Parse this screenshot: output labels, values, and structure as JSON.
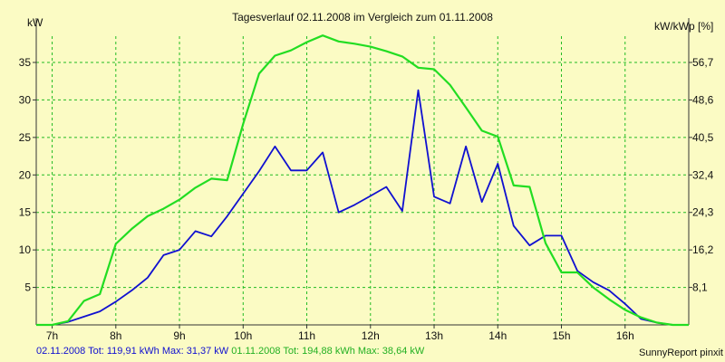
{
  "chart_data": {
    "type": "line",
    "title": "Tagesverlauf 02.11.2008 im Vergleich zum 01.11.2008",
    "ylabel_left": "kW",
    "ylabel_right": "kW/kWp [%]",
    "x_ticks": [
      "7h",
      "8h",
      "9h",
      "10h",
      "11h",
      "12h",
      "13h",
      "14h",
      "15h",
      "16h"
    ],
    "x_range_hours": [
      6.75,
      17.0
    ],
    "y_left_ticks": [
      5,
      10,
      15,
      20,
      25,
      30,
      35
    ],
    "y_left_range": [
      0,
      38.5
    ],
    "y_right_ticks": [
      "8,1",
      "16,2",
      "24,3",
      "32,4",
      "40,5",
      "48,6",
      "56,7"
    ],
    "grid": true,
    "colors": {
      "background": "#fbfbc4",
      "grid": "#22bb22",
      "series1": "#1010d0",
      "series2": "#22dd22"
    },
    "series": [
      {
        "name": "02.11.2008",
        "color": "#1010d0",
        "points": [
          [
            6.75,
            0
          ],
          [
            7.0,
            0
          ],
          [
            7.25,
            0.4
          ],
          [
            7.5,
            1.1
          ],
          [
            7.75,
            1.8
          ],
          [
            8.0,
            3.1
          ],
          [
            8.25,
            4.6
          ],
          [
            8.5,
            6.3
          ],
          [
            8.75,
            9.3
          ],
          [
            9.0,
            10.0
          ],
          [
            9.25,
            12.5
          ],
          [
            9.5,
            11.8
          ],
          [
            9.75,
            14.5
          ],
          [
            10.0,
            17.5
          ],
          [
            10.25,
            20.5
          ],
          [
            10.5,
            23.8
          ],
          [
            10.75,
            20.6
          ],
          [
            11.0,
            20.6
          ],
          [
            11.25,
            23.0
          ],
          [
            11.5,
            15.0
          ],
          [
            11.75,
            16.0
          ],
          [
            12.0,
            17.2
          ],
          [
            12.25,
            18.4
          ],
          [
            12.5,
            15.2
          ],
          [
            12.75,
            31.3
          ],
          [
            13.0,
            17.1
          ],
          [
            13.25,
            16.2
          ],
          [
            13.5,
            23.8
          ],
          [
            13.75,
            16.4
          ],
          [
            14.0,
            21.5
          ],
          [
            14.25,
            13.2
          ],
          [
            14.5,
            10.6
          ],
          [
            14.75,
            11.9
          ],
          [
            15.0,
            11.9
          ],
          [
            15.25,
            7.2
          ],
          [
            15.5,
            5.7
          ],
          [
            15.75,
            4.6
          ],
          [
            16.0,
            2.8
          ],
          [
            16.25,
            0.8
          ],
          [
            16.5,
            0.3
          ],
          [
            16.75,
            0
          ],
          [
            17.0,
            0
          ]
        ]
      },
      {
        "name": "01.11.2008",
        "color": "#22dd22",
        "points": [
          [
            6.75,
            0
          ],
          [
            7.0,
            0
          ],
          [
            7.25,
            0.5
          ],
          [
            7.5,
            3.2
          ],
          [
            7.75,
            4.1
          ],
          [
            8.0,
            10.8
          ],
          [
            8.25,
            12.8
          ],
          [
            8.5,
            14.5
          ],
          [
            8.75,
            15.5
          ],
          [
            9.0,
            16.7
          ],
          [
            9.25,
            18.3
          ],
          [
            9.5,
            19.5
          ],
          [
            9.75,
            19.3
          ],
          [
            10.0,
            26.8
          ],
          [
            10.25,
            33.5
          ],
          [
            10.5,
            35.9
          ],
          [
            10.75,
            36.6
          ],
          [
            11.0,
            37.7
          ],
          [
            11.25,
            38.6
          ],
          [
            11.5,
            37.8
          ],
          [
            11.75,
            37.5
          ],
          [
            12.0,
            37.1
          ],
          [
            12.25,
            36.5
          ],
          [
            12.5,
            35.8
          ],
          [
            12.75,
            34.3
          ],
          [
            13.0,
            34.1
          ],
          [
            13.25,
            32.0
          ],
          [
            13.5,
            29.0
          ],
          [
            13.75,
            25.9
          ],
          [
            14.0,
            25.1
          ],
          [
            14.25,
            18.6
          ],
          [
            14.5,
            18.4
          ],
          [
            14.75,
            10.9
          ],
          [
            15.0,
            7.0
          ],
          [
            15.25,
            7.0
          ],
          [
            15.5,
            5.0
          ],
          [
            15.75,
            3.4
          ],
          [
            16.0,
            2.0
          ],
          [
            16.25,
            1.0
          ],
          [
            16.5,
            0.3
          ],
          [
            16.75,
            0
          ],
          [
            17.0,
            0
          ]
        ]
      }
    ],
    "footer": {
      "s1": "02.11.2008 Tot: 119,91 kWh Max: 31,37 kW",
      "s2": "01.11.2008 Tot: 194,88 kWh Max: 38,64 kW"
    },
    "credit": "SunnyReport pinxit"
  }
}
